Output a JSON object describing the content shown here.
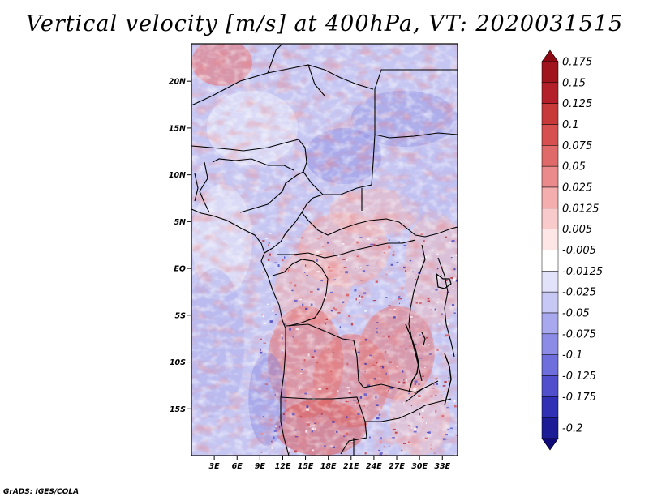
{
  "title": "Vertical velocity [m/s] at 400hPa, VT: 2020031515",
  "footer": "GrADS: IGES/COLA",
  "map": {
    "variable": "Vertical velocity",
    "units": "m/s",
    "level": "400hPa",
    "valid_time": "2020031515",
    "region": "Central and Western Africa",
    "lon_range": [
      0,
      35
    ],
    "lat_range": [
      -20,
      24
    ],
    "lat_ticks": [
      {
        "value": 20,
        "label": "20N"
      },
      {
        "value": 15,
        "label": "15N"
      },
      {
        "value": 10,
        "label": "10N"
      },
      {
        "value": 5,
        "label": "5N"
      },
      {
        "value": 0,
        "label": "EQ"
      },
      {
        "value": -5,
        "label": "5S"
      },
      {
        "value": -10,
        "label": "10S"
      },
      {
        "value": -15,
        "label": "15S"
      }
    ],
    "lon_ticks": [
      {
        "value": 3,
        "label": "3E"
      },
      {
        "value": 6,
        "label": "6E"
      },
      {
        "value": 9,
        "label": "9E"
      },
      {
        "value": 12,
        "label": "12E"
      },
      {
        "value": 15,
        "label": "15E"
      },
      {
        "value": 18,
        "label": "18E"
      },
      {
        "value": 21,
        "label": "21E"
      },
      {
        "value": 24,
        "label": "24E"
      },
      {
        "value": 27,
        "label": "27E"
      },
      {
        "value": 30,
        "label": "30E"
      },
      {
        "value": 33,
        "label": "33E"
      }
    ]
  },
  "legend": {
    "entries": [
      {
        "label": "0.175",
        "color": "#a0141e"
      },
      {
        "label": "0.15",
        "color": "#b4202a"
      },
      {
        "label": "0.125",
        "color": "#c83a3a"
      },
      {
        "label": "0.1",
        "color": "#d75050"
      },
      {
        "label": "0.075",
        "color": "#e06a6a"
      },
      {
        "label": "0.05",
        "color": "#ea8a8a"
      },
      {
        "label": "0.025",
        "color": "#f4aeae"
      },
      {
        "label": "0.0125",
        "color": "#f8caca"
      },
      {
        "label": "0.005",
        "color": "#fce6e6"
      },
      {
        "label": "-0.005",
        "color": "#ffffff"
      },
      {
        "label": "-0.0125",
        "color": "#e2e2fa"
      },
      {
        "label": "-0.025",
        "color": "#c8c8f5"
      },
      {
        "label": "-0.05",
        "color": "#a8a8ee"
      },
      {
        "label": "-0.075",
        "color": "#8c8ce6"
      },
      {
        "label": "-0.1",
        "color": "#6e6edc"
      },
      {
        "label": "-0.125",
        "color": "#5050cc"
      },
      {
        "label": "-0.175",
        "color": "#3030b4"
      },
      {
        "label": "-0.2",
        "color": "#1c1c96"
      }
    ],
    "top_arrow_color": "#8c0a14",
    "bottom_arrow_color": "#100a78"
  },
  "colors": {
    "border": "#000000",
    "background": "#ffffff"
  }
}
